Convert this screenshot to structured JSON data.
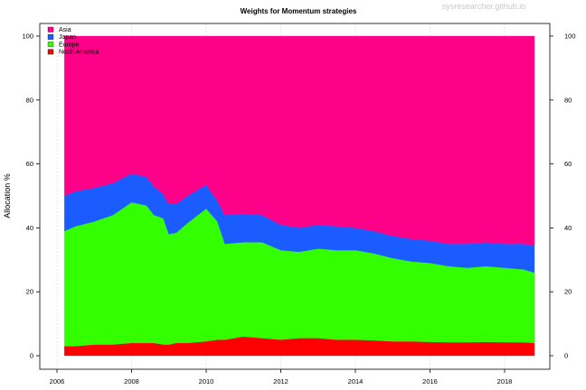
{
  "chart_data": {
    "type": "area",
    "stacked": true,
    "title": "Weights for Momentum strategies",
    "watermark": "sysresearcher.github.io",
    "ylabel": "Allocation %",
    "xlabel": "",
    "ylim": [
      0,
      100
    ],
    "xlim": [
      2006,
      2019.1
    ],
    "y_ticks": [
      0,
      20,
      40,
      60,
      80,
      100
    ],
    "y_tick_labels": [
      "0",
      "20",
      "40",
      "60",
      "80",
      "100"
    ],
    "y_ticks_right": true,
    "x_ticks": [
      2006,
      2008,
      2010,
      2012,
      2014,
      2016,
      2018
    ],
    "x_tick_labels": [
      "2006",
      "2008",
      "2010",
      "2012",
      "2014",
      "2016",
      "2018"
    ],
    "grid": "vertical dotted at x ticks",
    "legend_position": "top-left",
    "legend": [
      "Asia",
      "Japan",
      "Europe",
      "North America"
    ],
    "x": [
      2006.2,
      2006.5,
      2007.0,
      2007.5,
      2008.0,
      2008.4,
      2008.6,
      2008.85,
      2009.0,
      2009.2,
      2009.5,
      2010.0,
      2010.3,
      2010.5,
      2011.0,
      2011.5,
      2012.0,
      2012.5,
      2013.0,
      2013.5,
      2014.0,
      2014.5,
      2015.0,
      2015.5,
      2016.0,
      2016.5,
      2017.0,
      2017.5,
      2018.0,
      2018.5,
      2018.8
    ],
    "series": [
      {
        "name": "North America",
        "color": "#ff0000",
        "values": [
          3,
          3,
          3.5,
          3.5,
          4,
          4,
          4,
          3.5,
          3.5,
          4,
          4,
          4.5,
          5,
          5,
          6,
          5.5,
          5,
          5.5,
          5.5,
          5,
          5,
          4.8,
          4.5,
          4.5,
          4.3,
          4.2,
          4.2,
          4.3,
          4.2,
          4.2,
          4
        ]
      },
      {
        "name": "Europe",
        "color": "#33ff00",
        "values": [
          36,
          37.5,
          38.5,
          40.5,
          44,
          43,
          40,
          39.5,
          34.5,
          34.5,
          37.5,
          41.5,
          37,
          30,
          29.5,
          30,
          28,
          27,
          28,
          28,
          28,
          27.2,
          26,
          25,
          24.7,
          23.8,
          23.3,
          23.7,
          23.3,
          22.8,
          22
        ]
      },
      {
        "name": "Japan",
        "color": "#1a5cff",
        "values": [
          11,
          11,
          10.5,
          10,
          9,
          9,
          9,
          7.5,
          9.5,
          9,
          8.5,
          7.5,
          6.5,
          9,
          9,
          8.5,
          8,
          7.5,
          7.5,
          7.5,
          7,
          7,
          7,
          7,
          7,
          7,
          7.5,
          7.5,
          7.5,
          8,
          8.5
        ]
      },
      {
        "name": "Asia",
        "color": "#ff0088",
        "values": [
          50,
          48.5,
          47.5,
          46,
          43,
          44,
          47,
          49.5,
          52.5,
          52.5,
          50,
          46.5,
          51.5,
          56,
          55.5,
          56,
          59,
          60,
          59,
          59.5,
          60,
          61,
          62.5,
          63.5,
          64,
          65,
          65,
          64.5,
          65,
          65,
          65.5
        ]
      }
    ]
  }
}
